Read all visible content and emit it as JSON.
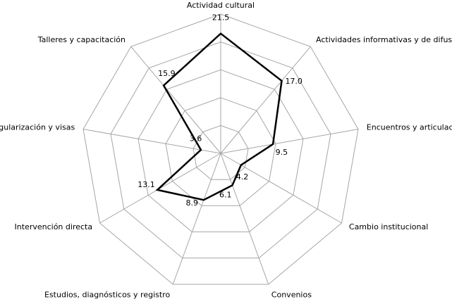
{
  "chart_data": {
    "type": "radar",
    "title": "",
    "categories": [
      "Actividad cultural",
      "Actividades informativas y de difusión",
      "Encuentros y articulación",
      "Cambio institucional",
      "Convenios",
      "Estudios, diagnósticos y registro",
      "Intervención directa",
      "Regularización y visas",
      "Talleres y capacitación"
    ],
    "series": [
      {
        "values": [
          21.5,
          17.0,
          9.5,
          4.2,
          6.1,
          8.9,
          13.1,
          3.6,
          15.9
        ],
        "labels": [
          "21.5",
          "17.0",
          "9.5",
          "4.2",
          "6.1",
          "8.9",
          "13.1",
          "3.6",
          "15.9"
        ]
      }
    ],
    "rmax": 25,
    "rings": 5,
    "grid": true,
    "legend": "none",
    "colors": {
      "series": "#000000",
      "grid": "#a6a6a6"
    }
  }
}
